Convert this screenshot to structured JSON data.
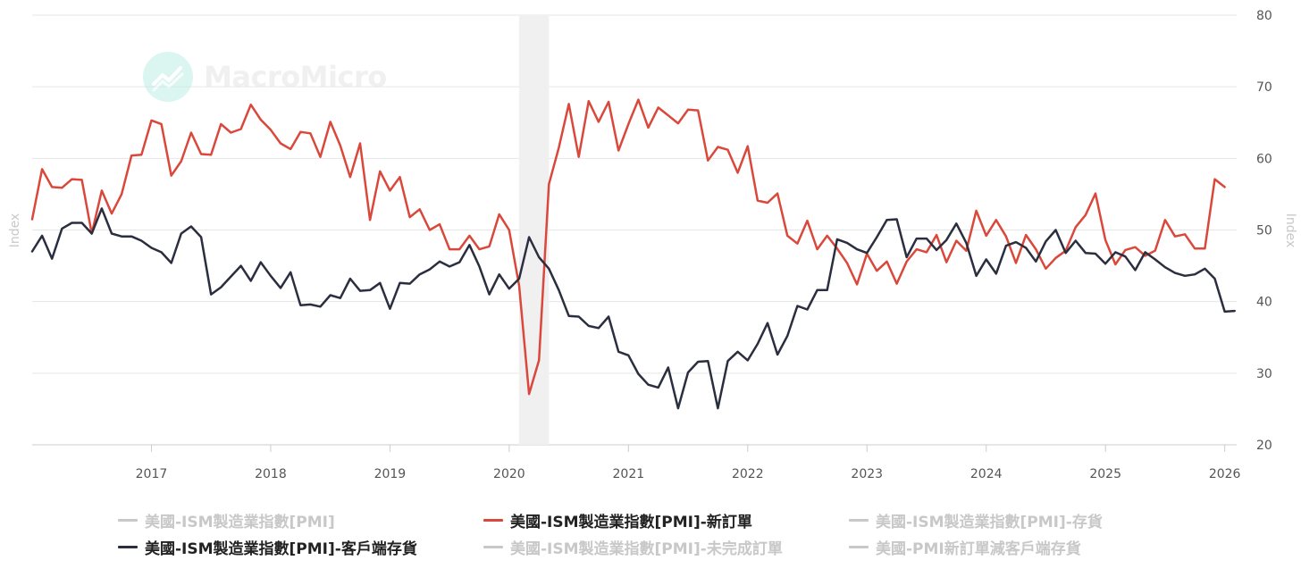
{
  "watermark": {
    "text": "MacroMicro"
  },
  "chart_data": {
    "type": "line",
    "left_axis_title": "Index",
    "right_axis_title": "Index",
    "ylim": [
      20,
      80
    ],
    "yticks": [
      20,
      30,
      40,
      50,
      60,
      70,
      80
    ],
    "xlim": [
      2016.0,
      2026.1
    ],
    "xticks": [
      2017,
      2018,
      2019,
      2020,
      2021,
      2022,
      2023,
      2024,
      2025,
      2026
    ],
    "shaded_region": {
      "label": "recession",
      "start": 2020.083,
      "end": 2020.333,
      "color": "#f0f0f0"
    },
    "series": [
      {
        "key": "new_orders",
        "name": "美國-ISM製造業指數[PMI]-新訂單",
        "color": "#d9483b",
        "visible": true,
        "start": 2016.0,
        "step": 0.08333,
        "values": [
          51.5,
          58.5,
          56,
          55.9,
          57.1,
          57,
          49.5,
          55.5,
          52.3,
          55,
          60.4,
          60.5,
          65.3,
          64.8,
          57.6,
          59.6,
          63.6,
          60.6,
          60.5,
          64.8,
          63.6,
          64.1,
          67.5,
          65.4,
          64,
          62.1,
          61.3,
          63.7,
          63.5,
          60.2,
          65.1,
          61.8,
          57.4,
          62.1,
          51.4,
          58.2,
          55.5,
          57.4,
          51.8,
          52.9,
          50,
          50.8,
          47.3,
          47.3,
          49.2,
          47.3,
          47.7,
          52.2,
          50,
          42.2,
          27.1,
          31.8,
          56.4,
          61.5,
          67.6,
          60.2,
          68,
          65.1,
          67.9,
          61.1,
          64.8,
          68.2,
          64.3,
          67.1,
          66,
          64.9,
          66.8,
          66.7,
          59.7,
          61.6,
          61.2,
          58,
          61.7,
          54.1,
          53.8,
          55.1,
          49.2,
          48.1,
          51.3,
          47.3,
          49.2,
          47.4,
          45.4,
          42.4,
          46.7,
          44.3,
          45.6,
          42.5,
          45.6,
          47.3,
          46.9,
          49.3,
          45.5,
          48.5,
          47.1,
          52.7,
          49.2,
          51.4,
          49.1,
          45.4,
          49.3,
          47.3,
          44.6,
          46.1,
          47.1,
          50.4,
          52.1,
          55.1,
          48.6,
          45.2,
          47.2,
          47.6,
          46.4,
          47.1,
          51.4,
          49.1,
          49.4,
          47.4,
          47.4,
          57.1,
          56
        ]
      },
      {
        "key": "customer_inventories",
        "name": "美國-ISM製造業指數[PMI]-客戶端存貨",
        "color": "#2a2e3f",
        "visible": true,
        "start": 2016.0,
        "step": 0.08333,
        "values": [
          47,
          49.2,
          46,
          50.2,
          51,
          51,
          49.5,
          53,
          49.5,
          49.1,
          49.1,
          48.5,
          47.5,
          46.9,
          45.4,
          49.5,
          50.5,
          49,
          41,
          42,
          43.5,
          45,
          42.9,
          45.5,
          43.6,
          41.9,
          44.1,
          39.5,
          39.6,
          39.3,
          40.9,
          40.5,
          43.2,
          41.5,
          41.6,
          42.6,
          39,
          42.6,
          42.5,
          43.8,
          44.5,
          45.6,
          44.9,
          45.5,
          47.9,
          44.9,
          41,
          43.8,
          41.8,
          43.2,
          49,
          46.2,
          44.6,
          41.6,
          38,
          37.9,
          36.6,
          36.3,
          37.9,
          33,
          32.5,
          29.9,
          28.4,
          28,
          30.8,
          25.1,
          30.1,
          31.6,
          31.7,
          25.1,
          31.7,
          33,
          31.8,
          34.1,
          37,
          32.6,
          35.2,
          39.4,
          38.9,
          41.6,
          41.6,
          48.7,
          48.2,
          47.3,
          46.8,
          49,
          51.4,
          51.5,
          46.2,
          48.8,
          48.8,
          47.2,
          48.6,
          50.9,
          48.2,
          43.6,
          45.9,
          43.9,
          47.8,
          48.3,
          47.5,
          45.6,
          48.4,
          50,
          46.8,
          48.5,
          46.8,
          46.7,
          45.3,
          46.9,
          46.3,
          44.4,
          46.9,
          45.9,
          44.8,
          44,
          43.6,
          43.8,
          44.6,
          43.2,
          38.6,
          38.7
        ]
      }
    ]
  },
  "legend": [
    {
      "label": "美國-ISM製造業指數[PMI]",
      "color": "#c8c8c8",
      "text_color": "#c8c8c8",
      "visible": false
    },
    {
      "label": "美國-ISM製造業指數[PMI]-新訂單",
      "color": "#d9483b",
      "text_color": "#222222",
      "visible": true
    },
    {
      "label": "美國-ISM製造業指數[PMI]-存貨",
      "color": "#c8c8c8",
      "text_color": "#c8c8c8",
      "visible": false
    },
    {
      "label": "美國-ISM製造業指數[PMI]-客戶端存貨",
      "color": "#2a2e3f",
      "text_color": "#222222",
      "visible": true
    },
    {
      "label": "美國-ISM製造業指數[PMI]-未完成訂單",
      "color": "#c8c8c8",
      "text_color": "#c8c8c8",
      "visible": false
    },
    {
      "label": "美國-PMI新訂單減客戶端存貨",
      "color": "#c8c8c8",
      "text_color": "#c8c8c8",
      "visible": false
    }
  ]
}
